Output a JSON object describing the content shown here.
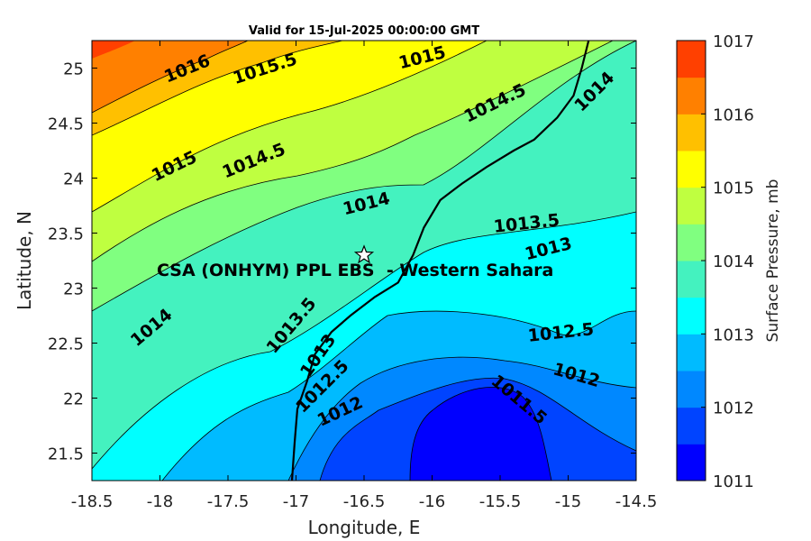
{
  "chart_data": {
    "type": "contour",
    "title": "Valid for 15-Jul-2025 00:00:00 GMT",
    "xlabel": "Longitude, E",
    "ylabel": "Latitude, N",
    "xlim": [
      -18.5,
      -14.5
    ],
    "ylim": [
      21.25,
      25.25
    ],
    "xticks": [
      "-18.5",
      "-18",
      "-17.5",
      "-17",
      "-16.5",
      "-16",
      "-15.5",
      "-15",
      "-14.5"
    ],
    "yticks": [
      "21.5",
      "22",
      "22.5",
      "23",
      "23.5",
      "24",
      "24.5",
      "25"
    ],
    "colorbar": {
      "label": "Surface Pressure, mb",
      "ticks": [
        "1011",
        "1012",
        "1013",
        "1014",
        "1015",
        "1016",
        "1017"
      ],
      "levels": [
        1011,
        1011.5,
        1012,
        1012.5,
        1013,
        1013.5,
        1014,
        1014.5,
        1015,
        1015.5,
        1016,
        1016.5,
        1017
      ],
      "colors": [
        "#0000ff",
        "#0044ff",
        "#0088ff",
        "#00bbff",
        "#00ffff",
        "#44f2bf",
        "#80ff80",
        "#bfff40",
        "#ffff00",
        "#ffc000",
        "#ff8000",
        "#ff4000",
        "#ff0000"
      ]
    },
    "contour_labels": [
      "1016",
      "1015.5",
      "1015",
      "1015",
      "1014.5",
      "1014.5",
      "1014",
      "1014",
      "1013.5",
      "1013.5",
      "1013",
      "1013",
      "1012.5",
      "1012.5",
      "1012",
      "1012",
      "1011.5",
      "1014"
    ],
    "marker": {
      "label": "CSA (ONHYM) PPL EBS  - Western Sahara",
      "lon": -16.5,
      "lat": 23.3,
      "symbol": "star"
    },
    "coastline": [
      [
        -17.03,
        21.25
      ],
      [
        -17.01,
        21.6
      ],
      [
        -16.99,
        21.9
      ],
      [
        -16.92,
        22.15
      ],
      [
        -16.86,
        22.4
      ],
      [
        -16.74,
        22.6
      ],
      [
        -16.6,
        22.75
      ],
      [
        -16.42,
        22.92
      ],
      [
        -16.25,
        23.05
      ],
      [
        -16.14,
        23.3
      ],
      [
        -16.06,
        23.55
      ],
      [
        -15.94,
        23.8
      ],
      [
        -15.78,
        23.95
      ],
      [
        -15.6,
        24.1
      ],
      [
        -15.4,
        24.25
      ],
      [
        -15.25,
        24.35
      ],
      [
        -15.08,
        24.55
      ],
      [
        -14.96,
        24.75
      ],
      [
        -14.9,
        25.0
      ],
      [
        -14.85,
        25.25
      ]
    ]
  }
}
